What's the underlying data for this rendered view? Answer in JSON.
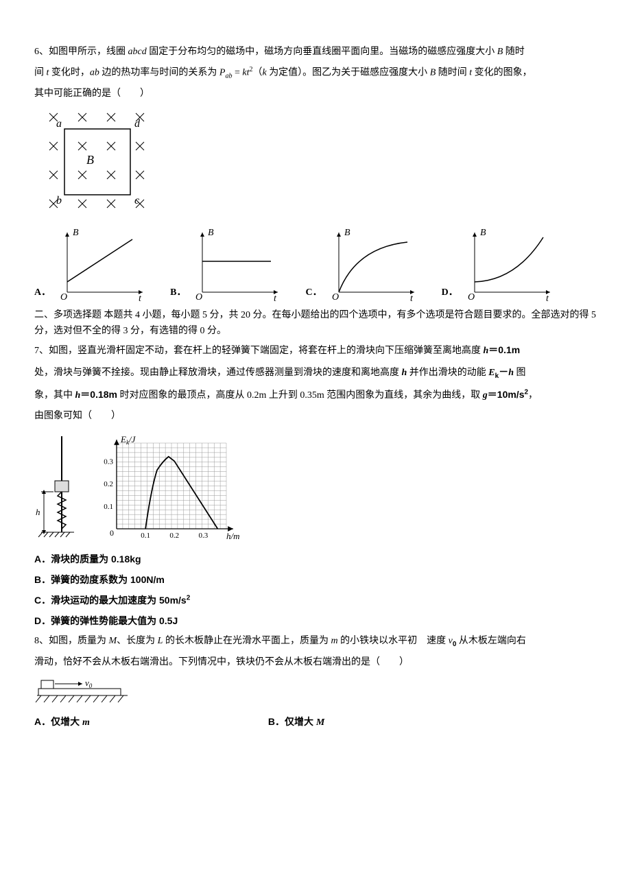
{
  "q6": {
    "stem_pre": "6、如图甲所示，线圈 ",
    "abcd": "abcd",
    "stem_mid1": " 固定于分布均匀的磁场中，磁场方向垂直线圈平面向里。当磁场的磁感应强度大小 ",
    "B1": "B",
    "stem_mid2": " 随时",
    "line2_pre": "间 ",
    "t1": "t",
    "line2_mid1": " 变化时，",
    "ab": "ab",
    "line2_mid2": " 边的热功率与时间的关系为 ",
    "P": "P",
    "Psub": "ab",
    "eq": " = ",
    "kt2": "kt",
    "exp2": "2",
    "line2_mid3": "（",
    "k": "k",
    "line2_mid4": " 为定值）。图乙为关于磁感应强度大小 ",
    "B2": "B",
    "line2_mid5": " 随时间 ",
    "t2": "t",
    "line2_end": " 变化的图象，",
    "line3": "其中可能正确的是（　　）",
    "circuit": {
      "labels": {
        "a": "a",
        "b": "b",
        "c": "c",
        "d": "d",
        "B": "B"
      },
      "grid_n": 4,
      "cross_size": 6,
      "stroke": "#000"
    },
    "options": {
      "A": "A．",
      "B": "B．",
      "C": "C．",
      "D": "D．",
      "axis": {
        "B": "B",
        "t": "t",
        "O": "O"
      },
      "axis_color": "#000"
    }
  },
  "section2": {
    "text": "二、多项选择题 本题共 4 小题，每小题 5 分，共 20 分。在每小题给出的四个选项中，有多个选项是符合题目要求的。全部选对的得 5 分，选对但不全的得 3 分，有选错的得 0 分。"
  },
  "q7": {
    "line1": "7、如图，竖直光滑杆固定不动，套在杆上的轻弹簧下端固定，将套在杆上的滑块向下压缩弹簧至离地高度 ",
    "h": "h",
    "eq01": "＝0.1m",
    "line2_a": "处，滑块与弹簧不拴接。现由静止释放滑块，通过传感器测量到滑块的速度和离地高度 ",
    "h2": "h",
    "line2_b": " 并作出滑块的动能 ",
    "Ek": "E",
    "Eksub": "k",
    "dash": "－",
    "h3": "h",
    "line2_c": " 图",
    "line3_a": "象，其中 ",
    "h4": "h",
    "eq018": "＝0.18m",
    "line3_b": " 时对应图象的最顶点，高度从 0.2m 上升到 0.35m 范围内图象为直线，其余为曲线，取 ",
    "g": "g",
    "eq10": "＝10m/s",
    "sq": "2",
    "comma": "，",
    "line4": "由图象可知（　　）",
    "chart": {
      "ylabel": "E",
      "ylabel_sub": "k",
      "yunit": "/J",
      "xlabel": "h",
      "xunit": "/m",
      "xticks": [
        "0.1",
        "0.2",
        "0.3"
      ],
      "yticks": [
        "0.1",
        "0.2",
        "0.3"
      ],
      "xlim": [
        0,
        0.38
      ],
      "ylim": [
        0,
        0.38
      ],
      "points": [
        [
          0.1,
          0
        ],
        [
          0.12,
          0.18
        ],
        [
          0.14,
          0.26
        ],
        [
          0.16,
          0.3
        ],
        [
          0.18,
          0.32
        ],
        [
          0.2,
          0.3
        ],
        [
          0.35,
          0.0
        ]
      ],
      "grid_color": "#999",
      "axis_color": "#000"
    },
    "opts": {
      "A": "A．滑块的质量为 0.18kg",
      "B": "B．弹簧的劲度系数为 100N/m",
      "C_pre": "C．滑块运动的最大加速度为 50m/s",
      "C_sup": "2",
      "D": "D．弹簧的弹性势能最大值为 0.5J"
    }
  },
  "q8": {
    "line1_a": "8、如图，质量为 ",
    "M": "M",
    "line1_b": "、长度为 ",
    "L": "L",
    "line1_c": " 的长木板静止在光滑水平面上，质量为 ",
    "m": "m",
    "line1_d": " 的小铁块以水平初　速度 ",
    "v0": "v",
    "v0sub": "0",
    "line1_e": " 从木板左端向右",
    "line2": "滑动，恰好不会从木板右端滑出。下列情况中，铁块仍不会从木板右端滑出的是（　　）",
    "fig": {
      "v0": "v",
      "v0sub": "0",
      "arrow_color": "#000"
    },
    "opts": {
      "A_pre": "A．仅增大 ",
      "A_it": "m",
      "B_pre": "B．仅增大 ",
      "B_it": "M"
    }
  }
}
